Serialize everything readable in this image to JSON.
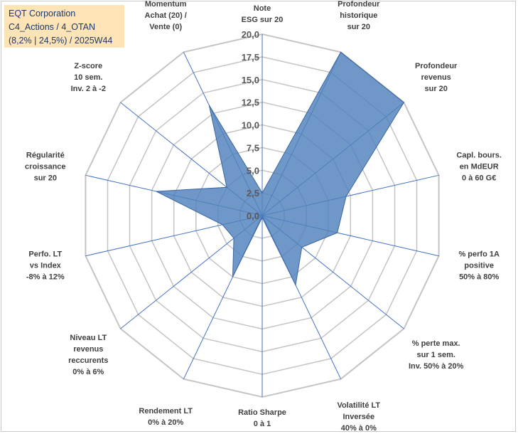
{
  "header": {
    "line1": "EQT Corporation",
    "line2": "C4_Actions / 4_OTAN",
    "line3": "(8,2% | 24,5%) / 2025W44"
  },
  "chart_data": {
    "type": "radar",
    "title": "EQT Corporation",
    "rmin": 0,
    "rmax": 20,
    "ticks": [
      "0,0",
      "2,5",
      "5,0",
      "7,5",
      "10,0",
      "12,5",
      "15,0",
      "17,5",
      "20,0"
    ],
    "axes": [
      {
        "label": [
          "Note",
          "ESG sur 20"
        ],
        "value": 2.5
      },
      {
        "label": [
          "Profondeur",
          "historique",
          "sur 20"
        ],
        "value": 20
      },
      {
        "label": [
          "Profondeur",
          "revenus",
          "sur 20"
        ],
        "value": 20
      },
      {
        "label": [
          "Capl. bours.",
          "en MdEUR",
          "0 à 60 G€"
        ],
        "value": 9.5
      },
      {
        "label": [
          "% perfo 1A",
          "positive",
          "50% à 80%"
        ],
        "value": 8.5
      },
      {
        "label": [
          "% perte max.",
          "sur 1 sem.",
          "Inv. 50% à 20%"
        ],
        "value": 5.6
      },
      {
        "label": [
          "Volatilité LT",
          "Inversée",
          "40% à 0%"
        ],
        "value": 8.5
      },
      {
        "label": [
          "Ratio Sharpe",
          "0 à 1"
        ],
        "value": 0.2
      },
      {
        "label": [
          "Rendement LT",
          "0% à 20%"
        ],
        "value": 7.5
      },
      {
        "label": [
          "Niveau LT",
          "revenus",
          "reccurents",
          "0% à 6%"
        ],
        "value": 4.0
      },
      {
        "label": [
          "Perfo. LT",
          "vs Index",
          "-8% à 12%"
        ],
        "value": 4.5
      },
      {
        "label": [
          "Régularité",
          "croissance",
          "sur 20"
        ],
        "value": 12.0
      },
      {
        "label": [
          "Z-score",
          "10 sem.",
          "Inv. 2 à -2"
        ],
        "value": 5.0
      },
      {
        "label": [
          "Momentum",
          "Achat (20) /",
          "Vente (0)"
        ],
        "value": 13.5
      }
    ],
    "series_color": "#4f81bd",
    "grid": true,
    "legend": "none"
  }
}
